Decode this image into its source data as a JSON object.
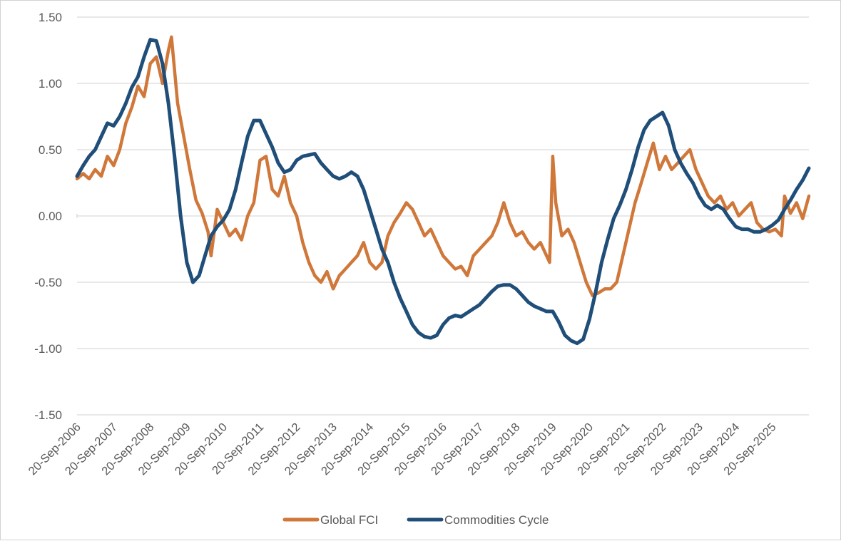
{
  "chart_data": {
    "type": "line",
    "title": "",
    "xlabel": "",
    "ylabel": "",
    "x_range": [
      "2006-09-20",
      "2026-09-20"
    ],
    "ylim": [
      -1.5,
      1.5
    ],
    "yticks": [
      {
        "value": 1.5,
        "label": "1.50"
      },
      {
        "value": 1.0,
        "label": "1.00"
      },
      {
        "value": 0.5,
        "label": "0.50"
      },
      {
        "value": 0.0,
        "label": "0.00"
      },
      {
        "value": -0.5,
        "label": "-0.50"
      },
      {
        "value": -1.0,
        "label": "-1.00"
      },
      {
        "value": -1.5,
        "label": "-1.50"
      }
    ],
    "xticks": [
      {
        "date": "2006-09-20",
        "label": "20-Sep-2006"
      },
      {
        "date": "2007-09-20",
        "label": "20-Sep-2007"
      },
      {
        "date": "2008-09-20",
        "label": "20-Sep-2008"
      },
      {
        "date": "2009-09-20",
        "label": "20-Sep-2009"
      },
      {
        "date": "2010-09-20",
        "label": "20-Sep-2010"
      },
      {
        "date": "2011-09-20",
        "label": "20-Sep-2011"
      },
      {
        "date": "2012-09-20",
        "label": "20-Sep-2012"
      },
      {
        "date": "2013-09-20",
        "label": "20-Sep-2013"
      },
      {
        "date": "2014-09-20",
        "label": "20-Sep-2014"
      },
      {
        "date": "2015-09-20",
        "label": "20-Sep-2015"
      },
      {
        "date": "2016-09-20",
        "label": "20-Sep-2016"
      },
      {
        "date": "2017-09-20",
        "label": "20-Sep-2017"
      },
      {
        "date": "2018-09-20",
        "label": "20-Sep-2018"
      },
      {
        "date": "2019-09-20",
        "label": "20-Sep-2019"
      },
      {
        "date": "2020-09-20",
        "label": "20-Sep-2020"
      },
      {
        "date": "2021-09-20",
        "label": "20-Sep-2021"
      },
      {
        "date": "2022-09-20",
        "label": "20-Sep-2022"
      },
      {
        "date": "2023-09-20",
        "label": "20-Sep-2023"
      },
      {
        "date": "2024-09-20",
        "label": "20-Sep-2024"
      },
      {
        "date": "2025-09-20",
        "label": "20-Sep-2025"
      }
    ],
    "grid": true,
    "legend_position": "bottom",
    "series": [
      {
        "name": "Global FCI",
        "color": "#D0773A",
        "points": [
          [
            "2006-09-20",
            0.28
          ],
          [
            "2006-11-20",
            0.32
          ],
          [
            "2007-01-20",
            0.28
          ],
          [
            "2007-03-20",
            0.35
          ],
          [
            "2007-05-20",
            0.3
          ],
          [
            "2007-07-20",
            0.45
          ],
          [
            "2007-09-20",
            0.38
          ],
          [
            "2007-11-20",
            0.5
          ],
          [
            "2008-01-20",
            0.7
          ],
          [
            "2008-03-20",
            0.82
          ],
          [
            "2008-05-20",
            0.98
          ],
          [
            "2008-07-20",
            0.9
          ],
          [
            "2008-09-20",
            1.15
          ],
          [
            "2008-11-20",
            1.2
          ],
          [
            "2009-01-20",
            1.0
          ],
          [
            "2009-03-20",
            1.25
          ],
          [
            "2009-04-20",
            1.35
          ],
          [
            "2009-06-20",
            0.85
          ],
          [
            "2009-08-20",
            0.6
          ],
          [
            "2009-10-20",
            0.35
          ],
          [
            "2009-12-20",
            0.12
          ],
          [
            "2010-02-20",
            0.02
          ],
          [
            "2010-04-20",
            -0.12
          ],
          [
            "2010-05-20",
            -0.3
          ],
          [
            "2010-07-20",
            0.05
          ],
          [
            "2010-09-20",
            -0.05
          ],
          [
            "2010-11-20",
            -0.15
          ],
          [
            "2011-01-20",
            -0.1
          ],
          [
            "2011-03-20",
            -0.18
          ],
          [
            "2011-05-20",
            0.0
          ],
          [
            "2011-07-20",
            0.1
          ],
          [
            "2011-09-20",
            0.42
          ],
          [
            "2011-11-20",
            0.45
          ],
          [
            "2012-01-20",
            0.2
          ],
          [
            "2012-03-20",
            0.15
          ],
          [
            "2012-05-20",
            0.3
          ],
          [
            "2012-07-20",
            0.1
          ],
          [
            "2012-09-20",
            0.0
          ],
          [
            "2012-11-20",
            -0.2
          ],
          [
            "2013-01-20",
            -0.35
          ],
          [
            "2013-03-20",
            -0.45
          ],
          [
            "2013-05-20",
            -0.5
          ],
          [
            "2013-07-20",
            -0.42
          ],
          [
            "2013-09-20",
            -0.55
          ],
          [
            "2013-11-20",
            -0.45
          ],
          [
            "2014-01-20",
            -0.4
          ],
          [
            "2014-03-20",
            -0.35
          ],
          [
            "2014-05-20",
            -0.3
          ],
          [
            "2014-07-20",
            -0.2
          ],
          [
            "2014-09-20",
            -0.35
          ],
          [
            "2014-11-20",
            -0.4
          ],
          [
            "2015-01-20",
            -0.35
          ],
          [
            "2015-03-20",
            -0.15
          ],
          [
            "2015-05-20",
            -0.05
          ],
          [
            "2015-07-20",
            0.02
          ],
          [
            "2015-09-20",
            0.1
          ],
          [
            "2015-11-20",
            0.05
          ],
          [
            "2016-01-20",
            -0.05
          ],
          [
            "2016-03-20",
            -0.15
          ],
          [
            "2016-05-20",
            -0.1
          ],
          [
            "2016-07-20",
            -0.2
          ],
          [
            "2016-09-20",
            -0.3
          ],
          [
            "2016-11-20",
            -0.35
          ],
          [
            "2017-01-20",
            -0.4
          ],
          [
            "2017-03-20",
            -0.38
          ],
          [
            "2017-05-20",
            -0.45
          ],
          [
            "2017-07-20",
            -0.3
          ],
          [
            "2017-09-20",
            -0.25
          ],
          [
            "2017-11-20",
            -0.2
          ],
          [
            "2018-01-20",
            -0.15
          ],
          [
            "2018-03-20",
            -0.05
          ],
          [
            "2018-05-20",
            0.1
          ],
          [
            "2018-07-20",
            -0.05
          ],
          [
            "2018-09-20",
            -0.15
          ],
          [
            "2018-11-20",
            -0.12
          ],
          [
            "2019-01-20",
            -0.2
          ],
          [
            "2019-03-20",
            -0.25
          ],
          [
            "2019-05-20",
            -0.2
          ],
          [
            "2019-07-20",
            -0.3
          ],
          [
            "2019-08-20",
            -0.35
          ],
          [
            "2019-09-20",
            0.45
          ],
          [
            "2019-10-20",
            0.1
          ],
          [
            "2019-12-20",
            -0.15
          ],
          [
            "2020-02-20",
            -0.1
          ],
          [
            "2020-04-20",
            -0.2
          ],
          [
            "2020-06-20",
            -0.35
          ],
          [
            "2020-08-20",
            -0.5
          ],
          [
            "2020-10-20",
            -0.6
          ],
          [
            "2020-12-20",
            -0.58
          ],
          [
            "2021-02-20",
            -0.55
          ],
          [
            "2021-04-20",
            -0.55
          ],
          [
            "2021-06-20",
            -0.5
          ],
          [
            "2021-08-20",
            -0.3
          ],
          [
            "2021-10-20",
            -0.1
          ],
          [
            "2021-12-20",
            0.1
          ],
          [
            "2022-02-20",
            0.25
          ],
          [
            "2022-04-20",
            0.4
          ],
          [
            "2022-06-20",
            0.55
          ],
          [
            "2022-08-20",
            0.35
          ],
          [
            "2022-10-20",
            0.45
          ],
          [
            "2022-12-20",
            0.35
          ],
          [
            "2023-02-20",
            0.4
          ],
          [
            "2023-04-20",
            0.45
          ],
          [
            "2023-06-20",
            0.5
          ],
          [
            "2023-08-20",
            0.35
          ],
          [
            "2023-10-20",
            0.25
          ],
          [
            "2023-12-20",
            0.15
          ],
          [
            "2024-02-20",
            0.1
          ],
          [
            "2024-04-20",
            0.15
          ],
          [
            "2024-06-20",
            0.05
          ],
          [
            "2024-08-20",
            0.1
          ],
          [
            "2024-10-20",
            0.0
          ],
          [
            "2024-12-20",
            0.05
          ],
          [
            "2025-02-20",
            0.1
          ],
          [
            "2025-04-20",
            -0.05
          ],
          [
            "2025-06-20",
            -0.1
          ],
          [
            "2025-08-20",
            -0.12
          ],
          [
            "2025-10-20",
            -0.1
          ],
          [
            "2025-12-20",
            -0.15
          ],
          [
            "2026-01-20",
            0.15
          ],
          [
            "2026-03-20",
            0.02
          ],
          [
            "2026-05-20",
            0.1
          ],
          [
            "2026-07-20",
            -0.02
          ],
          [
            "2026-09-20",
            0.15
          ]
        ]
      },
      {
        "name": "Commodities Cycle",
        "color": "#1F4E79",
        "points": [
          [
            "2006-09-20",
            0.3
          ],
          [
            "2006-11-20",
            0.38
          ],
          [
            "2007-01-20",
            0.45
          ],
          [
            "2007-03-20",
            0.5
          ],
          [
            "2007-05-20",
            0.6
          ],
          [
            "2007-07-20",
            0.7
          ],
          [
            "2007-09-20",
            0.68
          ],
          [
            "2007-11-20",
            0.75
          ],
          [
            "2008-01-20",
            0.85
          ],
          [
            "2008-03-20",
            0.97
          ],
          [
            "2008-05-20",
            1.05
          ],
          [
            "2008-07-20",
            1.2
          ],
          [
            "2008-09-20",
            1.33
          ],
          [
            "2008-11-20",
            1.32
          ],
          [
            "2009-01-20",
            1.15
          ],
          [
            "2009-03-20",
            0.85
          ],
          [
            "2009-05-20",
            0.45
          ],
          [
            "2009-07-20",
            0.0
          ],
          [
            "2009-09-20",
            -0.35
          ],
          [
            "2009-11-20",
            -0.5
          ],
          [
            "2010-01-20",
            -0.45
          ],
          [
            "2010-03-20",
            -0.3
          ],
          [
            "2010-05-20",
            -0.15
          ],
          [
            "2010-07-20",
            -0.08
          ],
          [
            "2010-09-20",
            -0.03
          ],
          [
            "2010-11-20",
            0.05
          ],
          [
            "2011-01-20",
            0.2
          ],
          [
            "2011-03-20",
            0.4
          ],
          [
            "2011-05-20",
            0.6
          ],
          [
            "2011-07-20",
            0.72
          ],
          [
            "2011-09-20",
            0.72
          ],
          [
            "2011-11-20",
            0.62
          ],
          [
            "2012-01-20",
            0.52
          ],
          [
            "2012-03-20",
            0.4
          ],
          [
            "2012-05-20",
            0.33
          ],
          [
            "2012-07-20",
            0.35
          ],
          [
            "2012-09-20",
            0.42
          ],
          [
            "2012-11-20",
            0.45
          ],
          [
            "2013-01-20",
            0.46
          ],
          [
            "2013-03-20",
            0.47
          ],
          [
            "2013-05-20",
            0.4
          ],
          [
            "2013-07-20",
            0.35
          ],
          [
            "2013-09-20",
            0.3
          ],
          [
            "2013-11-20",
            0.28
          ],
          [
            "2014-01-20",
            0.3
          ],
          [
            "2014-03-20",
            0.33
          ],
          [
            "2014-05-20",
            0.3
          ],
          [
            "2014-07-20",
            0.2
          ],
          [
            "2014-09-20",
            0.05
          ],
          [
            "2014-11-20",
            -0.1
          ],
          [
            "2015-01-20",
            -0.25
          ],
          [
            "2015-03-20",
            -0.35
          ],
          [
            "2015-05-20",
            -0.5
          ],
          [
            "2015-07-20",
            -0.62
          ],
          [
            "2015-09-20",
            -0.72
          ],
          [
            "2015-11-20",
            -0.82
          ],
          [
            "2016-01-20",
            -0.88
          ],
          [
            "2016-03-20",
            -0.91
          ],
          [
            "2016-05-20",
            -0.92
          ],
          [
            "2016-07-20",
            -0.9
          ],
          [
            "2016-09-20",
            -0.82
          ],
          [
            "2016-11-20",
            -0.77
          ],
          [
            "2017-01-20",
            -0.75
          ],
          [
            "2017-03-20",
            -0.76
          ],
          [
            "2017-05-20",
            -0.73
          ],
          [
            "2017-07-20",
            -0.7
          ],
          [
            "2017-09-20",
            -0.67
          ],
          [
            "2017-11-20",
            -0.62
          ],
          [
            "2018-01-20",
            -0.57
          ],
          [
            "2018-03-20",
            -0.53
          ],
          [
            "2018-05-20",
            -0.52
          ],
          [
            "2018-07-20",
            -0.52
          ],
          [
            "2018-09-20",
            -0.55
          ],
          [
            "2018-11-20",
            -0.6
          ],
          [
            "2019-01-20",
            -0.65
          ],
          [
            "2019-03-20",
            -0.68
          ],
          [
            "2019-05-20",
            -0.7
          ],
          [
            "2019-07-20",
            -0.72
          ],
          [
            "2019-09-20",
            -0.72
          ],
          [
            "2019-11-20",
            -0.8
          ],
          [
            "2020-01-20",
            -0.9
          ],
          [
            "2020-03-20",
            -0.94
          ],
          [
            "2020-05-20",
            -0.96
          ],
          [
            "2020-07-20",
            -0.93
          ],
          [
            "2020-09-20",
            -0.78
          ],
          [
            "2020-11-20",
            -0.58
          ],
          [
            "2021-01-20",
            -0.35
          ],
          [
            "2021-03-20",
            -0.18
          ],
          [
            "2021-05-20",
            -0.02
          ],
          [
            "2021-07-20",
            0.08
          ],
          [
            "2021-09-20",
            0.2
          ],
          [
            "2021-11-20",
            0.35
          ],
          [
            "2022-01-20",
            0.52
          ],
          [
            "2022-03-20",
            0.65
          ],
          [
            "2022-05-20",
            0.72
          ],
          [
            "2022-07-20",
            0.75
          ],
          [
            "2022-09-20",
            0.78
          ],
          [
            "2022-11-20",
            0.68
          ],
          [
            "2023-01-20",
            0.5
          ],
          [
            "2023-03-20",
            0.4
          ],
          [
            "2023-05-20",
            0.32
          ],
          [
            "2023-07-20",
            0.25
          ],
          [
            "2023-09-20",
            0.15
          ],
          [
            "2023-11-20",
            0.08
          ],
          [
            "2024-01-20",
            0.05
          ],
          [
            "2024-03-20",
            0.08
          ],
          [
            "2024-05-20",
            0.05
          ],
          [
            "2024-07-20",
            -0.02
          ],
          [
            "2024-09-20",
            -0.08
          ],
          [
            "2024-11-20",
            -0.1
          ],
          [
            "2025-01-20",
            -0.1
          ],
          [
            "2025-03-20",
            -0.12
          ],
          [
            "2025-05-20",
            -0.12
          ],
          [
            "2025-07-20",
            -0.1
          ],
          [
            "2025-09-20",
            -0.07
          ],
          [
            "2025-11-20",
            -0.03
          ],
          [
            "2026-01-20",
            0.05
          ],
          [
            "2026-03-20",
            0.12
          ],
          [
            "2026-05-20",
            0.2
          ],
          [
            "2026-07-20",
            0.27
          ],
          [
            "2026-09-20",
            0.36
          ]
        ]
      }
    ]
  }
}
